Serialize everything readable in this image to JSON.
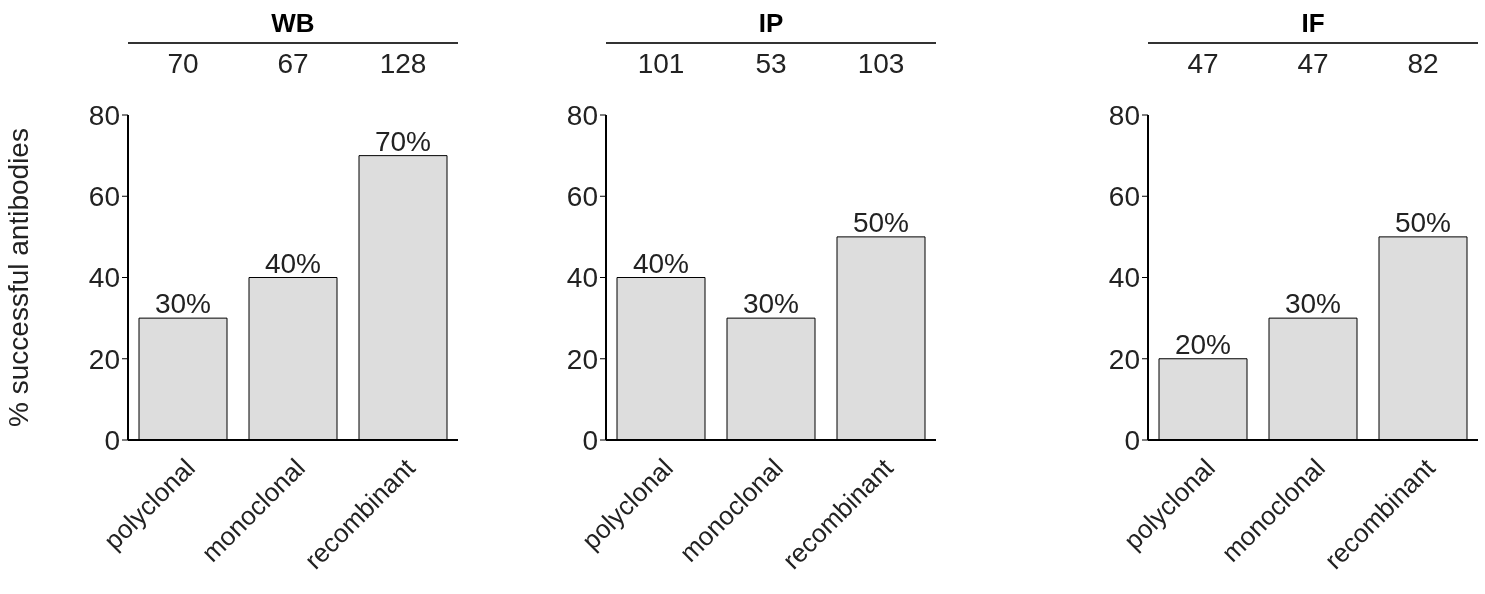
{
  "chart_data": [
    {
      "type": "bar",
      "title": "WB",
      "ylabel": "% successful antibodies",
      "categories": [
        "polyclonal",
        "monoclonal",
        "recombinant"
      ],
      "values": [
        30,
        40,
        70
      ],
      "value_labels": [
        "30%",
        "40%",
        "70%"
      ],
      "color": "#dddddd",
      "ylim": [
        0,
        80
      ],
      "yticks": [
        0,
        20,
        40,
        60,
        80
      ],
      "grid": false,
      "legend": false,
      "annotations": [
        "70",
        "67",
        "128"
      ]
    },
    {
      "type": "bar",
      "title": "IP",
      "categories": [
        "polyclonal",
        "monoclonal",
        "recombinant"
      ],
      "values": [
        40,
        30,
        50
      ],
      "value_labels": [
        "40%",
        "30%",
        "50%"
      ],
      "color": "#dddddd",
      "ylim": [
        0,
        80
      ],
      "yticks": [
        0,
        20,
        40,
        60,
        80
      ],
      "grid": false,
      "legend": false,
      "annotations": [
        "101",
        "53",
        "103"
      ]
    },
    {
      "type": "bar",
      "title": "IF",
      "categories": [
        "polyclonal",
        "monoclonal",
        "recombinant"
      ],
      "values": [
        20,
        30,
        50
      ],
      "value_labels": [
        "20%",
        "30%",
        "50%"
      ],
      "color": "#dddddd",
      "ylim": [
        0,
        80
      ],
      "yticks": [
        0,
        20,
        40,
        60,
        80
      ],
      "grid": false,
      "legend": false,
      "annotations": [
        "47",
        "47",
        "82"
      ]
    }
  ]
}
